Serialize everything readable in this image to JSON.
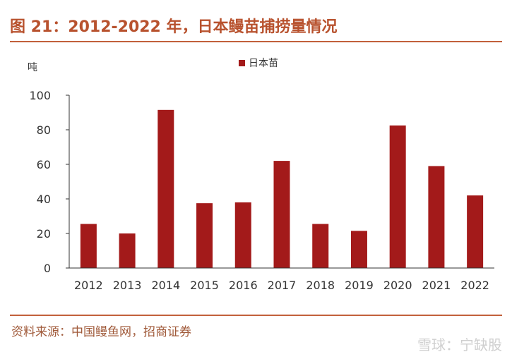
{
  "header": {
    "title": "图 21：2012-2022 年，日本鳗苗捕捞量情况"
  },
  "footer": {
    "source": "资料来源：中国鳗鱼网，招商证券",
    "watermark": "雪球：宁缺股"
  },
  "colors": {
    "bar": "#a31a1a",
    "title": "#b8522e",
    "rule": "#c2603b",
    "axis": "#333333"
  },
  "chart_data": {
    "type": "bar",
    "title": "",
    "xlabel": "",
    "ylabel": "吨",
    "categories": [
      "2012",
      "2013",
      "2014",
      "2015",
      "2016",
      "2017",
      "2018",
      "2019",
      "2020",
      "2021",
      "2022"
    ],
    "series": [
      {
        "name": "日本苗",
        "values": [
          25.5,
          20,
          91.5,
          37.5,
          38,
          62,
          25.5,
          21.5,
          82.5,
          59,
          42
        ]
      }
    ],
    "ylim": [
      0,
      100
    ],
    "yticks": [
      0,
      20,
      40,
      60,
      80,
      100
    ],
    "legend": "top-center",
    "grid": false
  }
}
